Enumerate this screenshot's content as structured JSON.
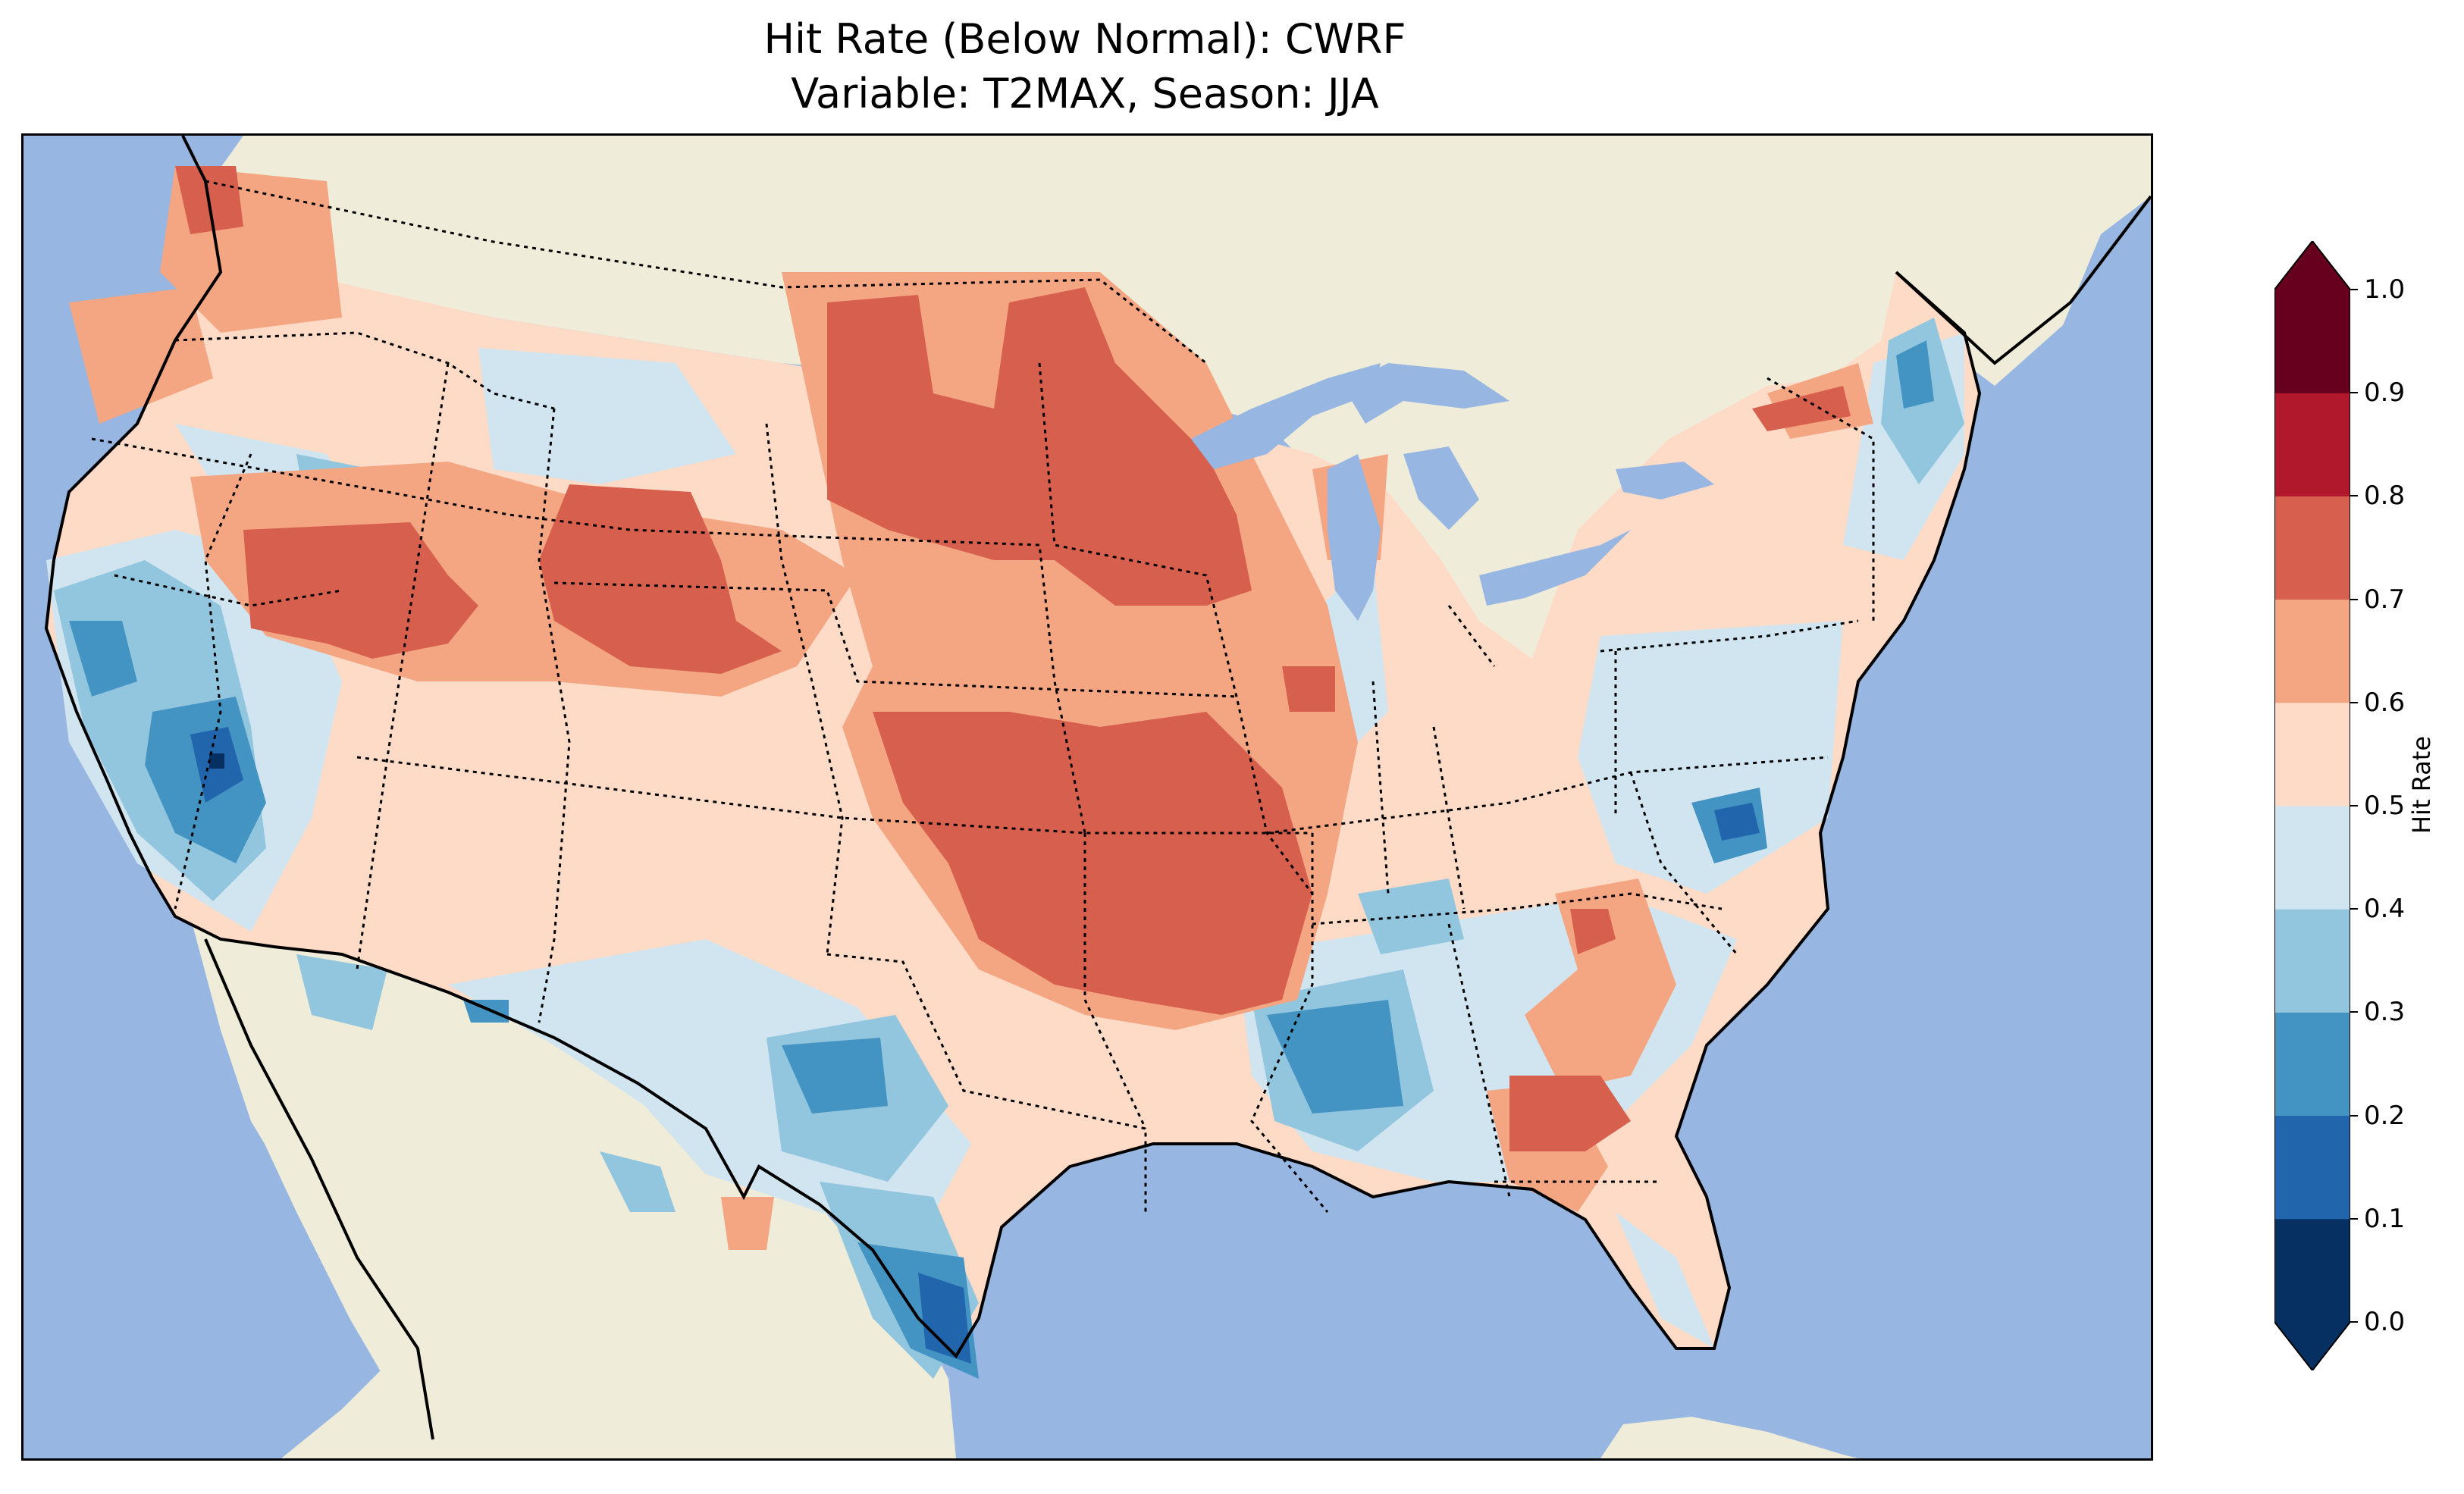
{
  "title": {
    "line1": "Hit Rate (Below Normal): CWRF",
    "line2": "Variable: T2MAX, Season: JJA"
  },
  "colors": {
    "ocean": "#97b6e1",
    "land": "#efedda",
    "coastline": "#000000"
  },
  "colorbar": {
    "label": "Hit Rate",
    "ticks": [
      "0.0",
      "0.1",
      "0.2",
      "0.3",
      "0.4",
      "0.5",
      "0.6",
      "0.7",
      "0.8",
      "0.9",
      "1.0"
    ],
    "bins": [
      {
        "range": "0.0-0.1",
        "color": "#053061"
      },
      {
        "range": "0.1-0.2",
        "color": "#2166ac"
      },
      {
        "range": "0.2-0.3",
        "color": "#4393c3"
      },
      {
        "range": "0.3-0.4",
        "color": "#92c5de"
      },
      {
        "range": "0.4-0.5",
        "color": "#d1e5f0"
      },
      {
        "range": "0.5-0.6",
        "color": "#fddbc7"
      },
      {
        "range": "0.6-0.7",
        "color": "#f4a582"
      },
      {
        "range": "0.7-0.8",
        "color": "#d6604d"
      },
      {
        "range": "0.8-0.9",
        "color": "#b2182b"
      },
      {
        "range": "0.9-1.0",
        "color": "#67001f"
      }
    ],
    "extend": "both"
  }
}
